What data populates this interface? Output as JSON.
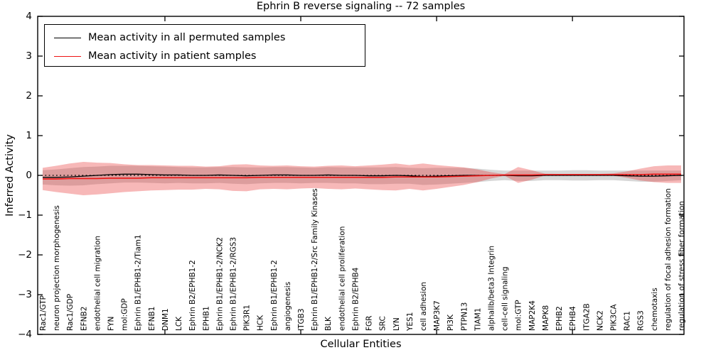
{
  "figure": {
    "title": "Ephrin B reverse signaling -- 72 samples",
    "xlabel": "Cellular Entities",
    "ylabel": "Inferred Activity"
  },
  "legend": {
    "items": [
      {
        "label": "Mean activity in all permuted samples",
        "color": "#000000"
      },
      {
        "label": "Mean activity in patient samples",
        "color": "#ee1515"
      }
    ]
  },
  "chart_data": {
    "type": "line",
    "title": "Ephrin B reverse signaling -- 72 samples",
    "xlabel": "Cellular Entities",
    "ylabel": "Inferred Activity",
    "ylim": [
      -4,
      4
    ],
    "yticks": [
      -4,
      -3,
      -2,
      -1,
      0,
      1,
      2,
      3,
      4
    ],
    "grid": false,
    "legend_position": "upper left",
    "x_tick_label_rotation_deg": 90,
    "zero_line": {
      "style": "dotted",
      "color": "#000000",
      "y": 0
    },
    "colors": {
      "permuted_line": "#000000",
      "patient_line": "#ee1515",
      "permuted_band": "rgba(175,175,175,0.5)",
      "patient_band": "rgba(230,40,40,0.33)"
    },
    "categories": [
      "Rac1/GTP",
      "neuron projection morphogenesis",
      "Rac1/GDP",
      "EFNB2",
      "endothelial cell migration",
      "FYN",
      "mol:GDP",
      "Ephrin B1/EPHB1-2/Tiam1",
      "EFNB1",
      "DNM1",
      "LCK",
      "Ephrin B2/EPHB1-2",
      "EPHB1",
      "Ephrin B1/EPHB1-2/NCK2",
      "Ephrin B1/EPHB1-2/RGS3",
      "PIK3R1",
      "HCK",
      "Ephrin B1/EPHB1-2",
      "angiogenesis",
      "ITGB3",
      "Ephrin B1/EPHB1-2/Src Family Kinases",
      "BLK",
      "endothelial cell proliferation",
      "Ephrin B2/EPHB4",
      "FGR",
      "SRC",
      "LYN",
      "YES1",
      "cell adhesion",
      "MAP3K7",
      "PI3K",
      "PTPN13",
      "TIAM1",
      "alphaIIb/beta3 Integrin",
      "cell-cell signaling",
      "mol:GTP",
      "MAP2K4",
      "MAPK8",
      "EPHB2",
      "EPHB4",
      "ITGA2B",
      "NCK2",
      "PIK3CA",
      "RAC1",
      "RGS3",
      "chemotaxis",
      "regulation of focal adhesion formation",
      "regulation of stress fiber formation"
    ],
    "series": [
      {
        "name": "Mean activity in all permuted samples",
        "values": [
          -0.05,
          -0.05,
          -0.04,
          -0.02,
          0.0,
          0.02,
          0.03,
          0.03,
          0.02,
          0.01,
          0.01,
          0.0,
          0.0,
          0.01,
          0.0,
          -0.01,
          0.0,
          0.01,
          0.01,
          0.0,
          0.0,
          0.01,
          0.0,
          0.0,
          -0.01,
          -0.01,
          0.0,
          -0.01,
          -0.03,
          -0.02,
          -0.01,
          0.0,
          0.0,
          0.0,
          0.0,
          -0.01,
          -0.01,
          0.0,
          0.0,
          0.0,
          0.0,
          0.0,
          0.0,
          -0.01,
          -0.02,
          -0.02,
          -0.01,
          0.0
        ]
      },
      {
        "name": "Mean activity in patient samples",
        "values": [
          -0.09,
          -0.09,
          -0.08,
          -0.08,
          -0.08,
          -0.07,
          -0.07,
          -0.07,
          -0.06,
          -0.06,
          -0.06,
          -0.06,
          -0.06,
          -0.06,
          -0.06,
          -0.06,
          -0.05,
          -0.05,
          -0.05,
          -0.05,
          -0.05,
          -0.05,
          -0.05,
          -0.05,
          -0.05,
          -0.05,
          -0.04,
          -0.04,
          -0.04,
          -0.04,
          -0.03,
          -0.02,
          -0.01,
          0.0,
          0.01,
          0.01,
          0.01,
          0.02,
          0.02,
          0.02,
          0.02,
          0.02,
          0.02,
          0.02,
          0.02,
          0.03,
          0.03,
          0.03
        ]
      }
    ],
    "bands": [
      {
        "name": "permuted-std-band",
        "center_series": 0,
        "half_widths": [
          0.18,
          0.2,
          0.22,
          0.23,
          0.22,
          0.22,
          0.21,
          0.21,
          0.21,
          0.21,
          0.2,
          0.2,
          0.2,
          0.2,
          0.21,
          0.21,
          0.2,
          0.2,
          0.2,
          0.2,
          0.19,
          0.2,
          0.2,
          0.2,
          0.21,
          0.21,
          0.21,
          0.2,
          0.21,
          0.21,
          0.2,
          0.19,
          0.17,
          0.14,
          0.12,
          0.13,
          0.13,
          0.12,
          0.12,
          0.13,
          0.13,
          0.12,
          0.12,
          0.13,
          0.14,
          0.14,
          0.13,
          0.12
        ]
      },
      {
        "name": "patient-std-band",
        "center_series": 1,
        "half_widths": [
          0.28,
          0.33,
          0.38,
          0.42,
          0.4,
          0.38,
          0.35,
          0.33,
          0.32,
          0.31,
          0.3,
          0.3,
          0.28,
          0.29,
          0.33,
          0.34,
          0.3,
          0.29,
          0.3,
          0.28,
          0.27,
          0.29,
          0.3,
          0.28,
          0.3,
          0.32,
          0.34,
          0.3,
          0.34,
          0.3,
          0.26,
          0.22,
          0.16,
          0.08,
          0.02,
          0.2,
          0.12,
          0.02,
          0.015,
          0.015,
          0.015,
          0.015,
          0.03,
          0.08,
          0.15,
          0.2,
          0.22,
          0.22
        ]
      }
    ],
    "top_tick_indices": [
      9,
      19,
      29,
      39
    ]
  }
}
